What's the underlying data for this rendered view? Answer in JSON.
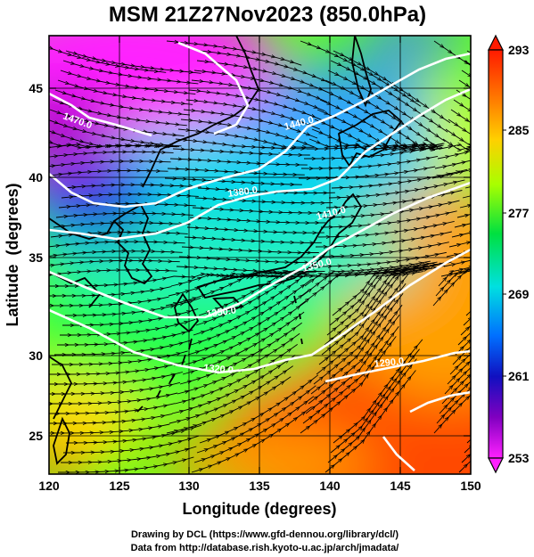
{
  "title": "MSM 21Z27Nov2023 (850.0hPa)",
  "colorbar": {
    "labels": [
      "293",
      "285",
      "277",
      "269",
      "261",
      "253"
    ],
    "values": [
      293,
      285,
      277,
      269,
      261,
      253
    ],
    "range": [
      253,
      293
    ]
  },
  "map": {
    "x_axis": {
      "label": "Longitude (degrees)",
      "ticks": [
        "120",
        "125",
        "130",
        "135",
        "140",
        "145",
        "150"
      ],
      "range": [
        120,
        150
      ]
    },
    "y_axis": {
      "label": "Latitude  (degrees)",
      "ticks": [
        "25",
        "30",
        "35",
        "40",
        "45"
      ],
      "range": [
        22.4,
        47.6
      ]
    },
    "contour_labels": [
      "1470.0",
      "1440.0",
      "1380.0",
      "1410.0",
      "1350.0",
      "1350.0",
      "1320.0",
      "1290.0"
    ],
    "colors": {
      "warm": "#ff4000",
      "mid": "#40ff00",
      "cool": "#00e0ff",
      "cold": "#2020ff",
      "coldest": "#ff20ff",
      "contours": "#ffffff",
      "coastline": "#000000",
      "streamlines": "#000000"
    }
  },
  "credits": {
    "line1": "Drawing by DCL (https://www.gfd-dennou.org/library/dcl/)",
    "line2": "Data from http://database.rish.kyoto-u.ac.jp/arch/jmadata/"
  }
}
